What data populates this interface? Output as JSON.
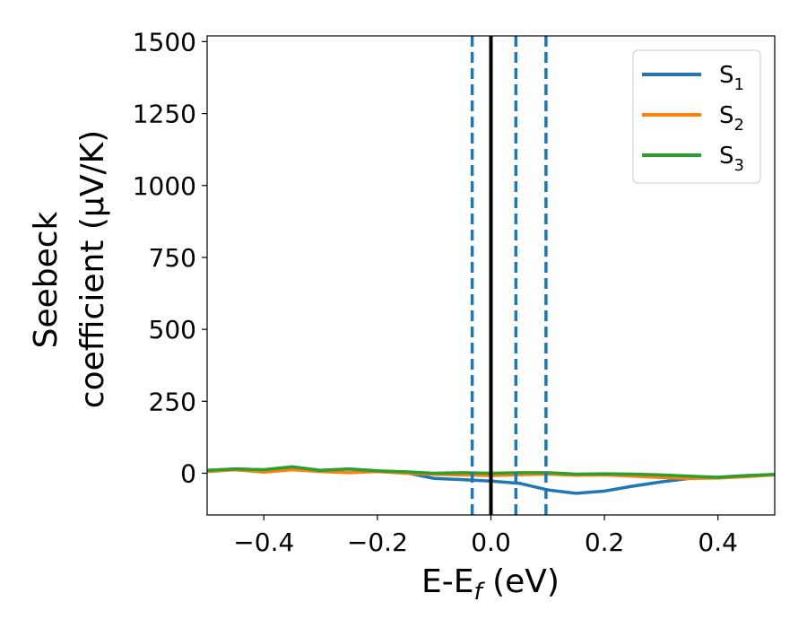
{
  "chart_data": {
    "type": "line",
    "xlabel": "E-E",
    "xlabel_sub": "f",
    "xlabel_unit": " (eV)",
    "ylabel_line1": "Seebeck",
    "ylabel_line2": "coefficient  (μV/K)",
    "xlim": [
      -0.5,
      0.5
    ],
    "ylim": [
      -145,
      1520
    ],
    "xticks": [
      -0.4,
      -0.2,
      0.0,
      0.2,
      0.4
    ],
    "xtick_labels": [
      "−0.4",
      "−0.2",
      "0.0",
      "0.2",
      "0.4"
    ],
    "yticks": [
      0,
      250,
      500,
      750,
      1000,
      1250,
      1500
    ],
    "ytick_labels": [
      "0",
      "250",
      "500",
      "750",
      "1000",
      "1250",
      "1500"
    ],
    "grid": false,
    "legend_position": "top-right",
    "vertical_lines": [
      {
        "x": -0.033,
        "style": "dashed",
        "color": "#1f77b4"
      },
      {
        "x": 0.0,
        "style": "solid",
        "color": "#000000"
      },
      {
        "x": 0.044,
        "style": "dashed",
        "color": "#1f77b4"
      },
      {
        "x": 0.097,
        "style": "dashed",
        "color": "#1f77b4"
      }
    ],
    "series": [
      {
        "name": "S",
        "sub": "1",
        "color": "#1f77b4",
        "x": [
          -0.5,
          -0.45,
          -0.4,
          -0.35,
          -0.3,
          -0.25,
          -0.2,
          -0.15,
          -0.1,
          -0.05,
          0.0,
          0.05,
          0.1,
          0.15,
          0.2,
          0.25,
          0.3,
          0.35,
          0.4,
          0.45,
          0.5
        ],
        "y": [
          10,
          15,
          12,
          22,
          10,
          15,
          8,
          2,
          -18,
          -22,
          -27,
          -35,
          -58,
          -70,
          -62,
          -45,
          -30,
          -18,
          -14,
          -8,
          -6
        ]
      },
      {
        "name": "S",
        "sub": "2",
        "color": "#ff7f0e",
        "x": [
          -0.5,
          -0.45,
          -0.4,
          -0.35,
          -0.3,
          -0.25,
          -0.2,
          -0.15,
          -0.1,
          -0.05,
          0.0,
          0.05,
          0.1,
          0.15,
          0.2,
          0.25,
          0.3,
          0.35,
          0.4,
          0.45,
          0.5
        ],
        "y": [
          6,
          12,
          4,
          12,
          6,
          2,
          6,
          0,
          -4,
          -6,
          -8,
          -5,
          -3,
          -7,
          -6,
          -10,
          -15,
          -18,
          -17,
          -12,
          -6
        ]
      },
      {
        "name": "S",
        "sub": "3",
        "color": "#2ca02c",
        "x": [
          -0.5,
          -0.45,
          -0.4,
          -0.35,
          -0.3,
          -0.25,
          -0.2,
          -0.15,
          -0.1,
          -0.05,
          0.0,
          0.05,
          0.1,
          0.15,
          0.2,
          0.25,
          0.3,
          0.35,
          0.4,
          0.45,
          0.5
        ],
        "y": [
          10,
          15,
          12,
          22,
          10,
          15,
          8,
          5,
          0,
          2,
          0,
          2,
          2,
          -3,
          -2,
          -3,
          -6,
          -10,
          -14,
          -8,
          -4
        ]
      }
    ]
  }
}
